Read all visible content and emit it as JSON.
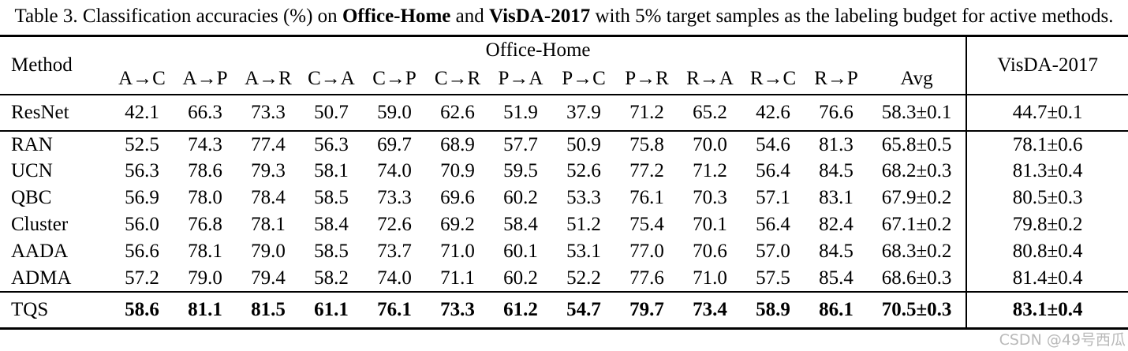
{
  "caption": {
    "prefix": "Table 3. Classification accuracies (%) on ",
    "dataset1": "Office-Home",
    "mid": " and ",
    "dataset2": "VisDA-2017",
    "suffix": " with 5% target samples as the labeling budget for active methods."
  },
  "table": {
    "method_header": "Method",
    "group_header": "Office-Home",
    "visda_header": "VisDA-2017",
    "task_headers": [
      "A→C",
      "A→P",
      "A→R",
      "C→A",
      "C→P",
      "C→R",
      "P→A",
      "P→C",
      "P→R",
      "R→A",
      "R→C",
      "R→P",
      "Avg"
    ],
    "groups": [
      {
        "rows": [
          {
            "method": "ResNet",
            "bold": false,
            "values": [
              "42.1",
              "66.3",
              "73.3",
              "50.7",
              "59.0",
              "62.6",
              "51.9",
              "37.9",
              "71.2",
              "65.2",
              "42.6",
              "76.6",
              "58.3±0.1",
              "44.7±0.1"
            ]
          }
        ]
      },
      {
        "rows": [
          {
            "method": "RAN",
            "bold": false,
            "values": [
              "52.5",
              "74.3",
              "77.4",
              "56.3",
              "69.7",
              "68.9",
              "57.7",
              "50.9",
              "75.8",
              "70.0",
              "54.6",
              "81.3",
              "65.8±0.5",
              "78.1±0.6"
            ]
          },
          {
            "method": "UCN",
            "bold": false,
            "values": [
              "56.3",
              "78.6",
              "79.3",
              "58.1",
              "74.0",
              "70.9",
              "59.5",
              "52.6",
              "77.2",
              "71.2",
              "56.4",
              "84.5",
              "68.2±0.3",
              "81.3±0.4"
            ]
          },
          {
            "method": "QBC",
            "bold": false,
            "values": [
              "56.9",
              "78.0",
              "78.4",
              "58.5",
              "73.3",
              "69.6",
              "60.2",
              "53.3",
              "76.1",
              "70.3",
              "57.1",
              "83.1",
              "67.9±0.2",
              "80.5±0.3"
            ]
          },
          {
            "method": "Cluster",
            "bold": false,
            "values": [
              "56.0",
              "76.8",
              "78.1",
              "58.4",
              "72.6",
              "69.2",
              "58.4",
              "51.2",
              "75.4",
              "70.1",
              "56.4",
              "82.4",
              "67.1±0.2",
              "79.8±0.2"
            ]
          },
          {
            "method": "AADA",
            "bold": false,
            "values": [
              "56.6",
              "78.1",
              "79.0",
              "58.5",
              "73.7",
              "71.0",
              "60.1",
              "53.1",
              "77.0",
              "70.6",
              "57.0",
              "84.5",
              "68.3±0.2",
              "80.8±0.4"
            ]
          },
          {
            "method": "ADMA",
            "bold": false,
            "values": [
              "57.2",
              "79.0",
              "79.4",
              "58.2",
              "74.0",
              "71.1",
              "60.2",
              "52.2",
              "77.6",
              "71.0",
              "57.5",
              "85.4",
              "68.6±0.3",
              "81.4±0.4"
            ]
          }
        ]
      },
      {
        "rows": [
          {
            "method": "TQS",
            "bold": true,
            "values": [
              "58.6",
              "81.1",
              "81.5",
              "61.1",
              "76.1",
              "73.3",
              "61.2",
              "54.7",
              "79.7",
              "73.4",
              "58.9",
              "86.1",
              "70.5±0.3",
              "83.1±0.4"
            ]
          }
        ]
      }
    ]
  },
  "watermark": "CSDN @49号西瓜",
  "colors": {
    "text": "#000000",
    "rule": "#000000",
    "watermark_gray": "#b9b9b9"
  }
}
